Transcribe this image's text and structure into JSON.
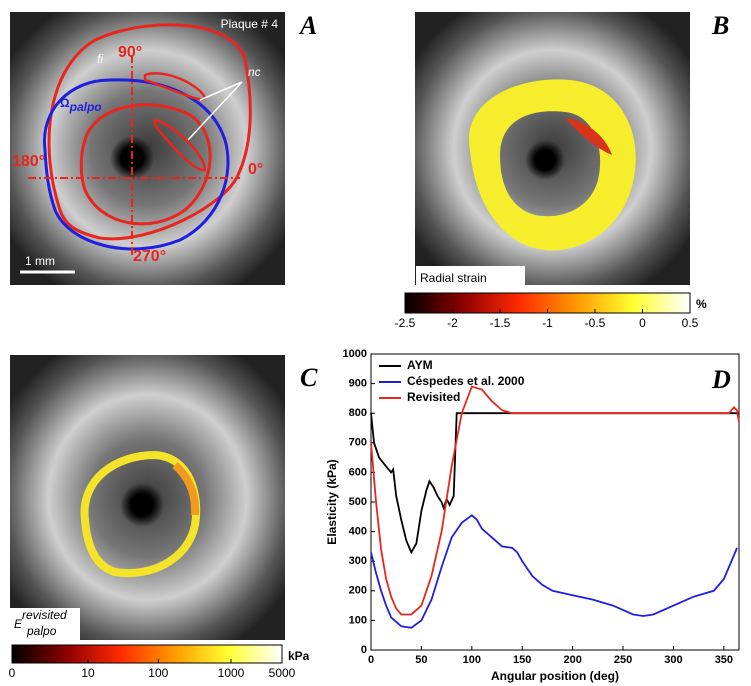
{
  "figure": {
    "panel_labels": [
      "A",
      "B",
      "C",
      "D"
    ],
    "panel_a": {
      "title": "Plaque # 4",
      "fi": "fi",
      "nc": "nc",
      "omega": "Ω",
      "omega_sub": "palpo",
      "angle_90": "90°",
      "angle_180": "180°",
      "angle_0": "0°",
      "angle_270": "270°",
      "scale_bar": "1 mm"
    },
    "panel_b": {
      "label": "Radial strain"
    },
    "panel_c": {
      "label": "E",
      "label_sup": "revisited",
      "label_sub": "palpo"
    }
  },
  "chart_data": [
    {
      "type": "line",
      "ylabel": "Elasticity (kPa)",
      "xlabel": "Angular position (deg)",
      "xlim": [
        0,
        365
      ],
      "ylim": [
        0,
        1000
      ],
      "xticks": [
        0,
        50,
        100,
        150,
        200,
        250,
        300,
        350
      ],
      "yticks": [
        0,
        100,
        200,
        300,
        400,
        500,
        600,
        700,
        800,
        900,
        1000
      ],
      "legend": "top-left",
      "series": [
        {
          "name": "AYM",
          "color": "#000000",
          "x": [
            0,
            3,
            8,
            15,
            20,
            22,
            25,
            30,
            35,
            40,
            45,
            50,
            55,
            58,
            62,
            66,
            70,
            72,
            75,
            78,
            82,
            85,
            100,
            200,
            300,
            365
          ],
          "values": [
            800,
            700,
            650,
            620,
            600,
            610,
            520,
            440,
            370,
            330,
            360,
            470,
            540,
            570,
            550,
            520,
            500,
            480,
            510,
            490,
            520,
            800,
            800,
            800,
            800,
            800
          ]
        },
        {
          "name": "Céspedes et al. 2000",
          "color": "#1f1fe0",
          "x": [
            0,
            5,
            10,
            15,
            20,
            30,
            40,
            50,
            60,
            70,
            80,
            90,
            100,
            105,
            110,
            120,
            130,
            140,
            145,
            150,
            160,
            170,
            180,
            200,
            220,
            240,
            260,
            270,
            280,
            300,
            320,
            330,
            340,
            350,
            360,
            363
          ],
          "values": [
            330,
            260,
            200,
            150,
            110,
            80,
            75,
            100,
            170,
            280,
            380,
            430,
            455,
            440,
            410,
            380,
            350,
            345,
            330,
            300,
            250,
            220,
            200,
            185,
            170,
            150,
            120,
            115,
            120,
            150,
            180,
            190,
            200,
            240,
            320,
            345
          ]
        },
        {
          "name": "Revisited",
          "color": "#e8261f",
          "x": [
            0,
            5,
            10,
            15,
            20,
            25,
            30,
            40,
            50,
            60,
            70,
            80,
            90,
            100,
            110,
            120,
            130,
            140,
            200,
            300,
            355,
            360,
            363,
            365
          ],
          "values": [
            700,
            500,
            340,
            240,
            180,
            140,
            120,
            120,
            150,
            250,
            400,
            620,
            800,
            890,
            880,
            840,
            810,
            800,
            800,
            800,
            800,
            820,
            810,
            770
          ]
        }
      ]
    },
    {
      "type": "colorbar",
      "unit": "%",
      "xlim": [
        -2.5,
        0.5
      ],
      "xticks": [
        -2.5,
        -2,
        -1.5,
        -1,
        -0.5,
        0,
        0.5
      ],
      "colors": [
        "#000000",
        "#8b0000",
        "#ff2a00",
        "#ff9900",
        "#ffff30",
        "#ffffff"
      ]
    },
    {
      "type": "colorbar",
      "unit": "kPa",
      "scale": "symlog",
      "xlim": [
        0,
        5000
      ],
      "xticks": [
        0,
        10,
        100,
        1000,
        5000
      ],
      "colors": [
        "#000000",
        "#8b0000",
        "#ff2a00",
        "#ff9900",
        "#ffff30",
        "#ffffff"
      ]
    }
  ]
}
